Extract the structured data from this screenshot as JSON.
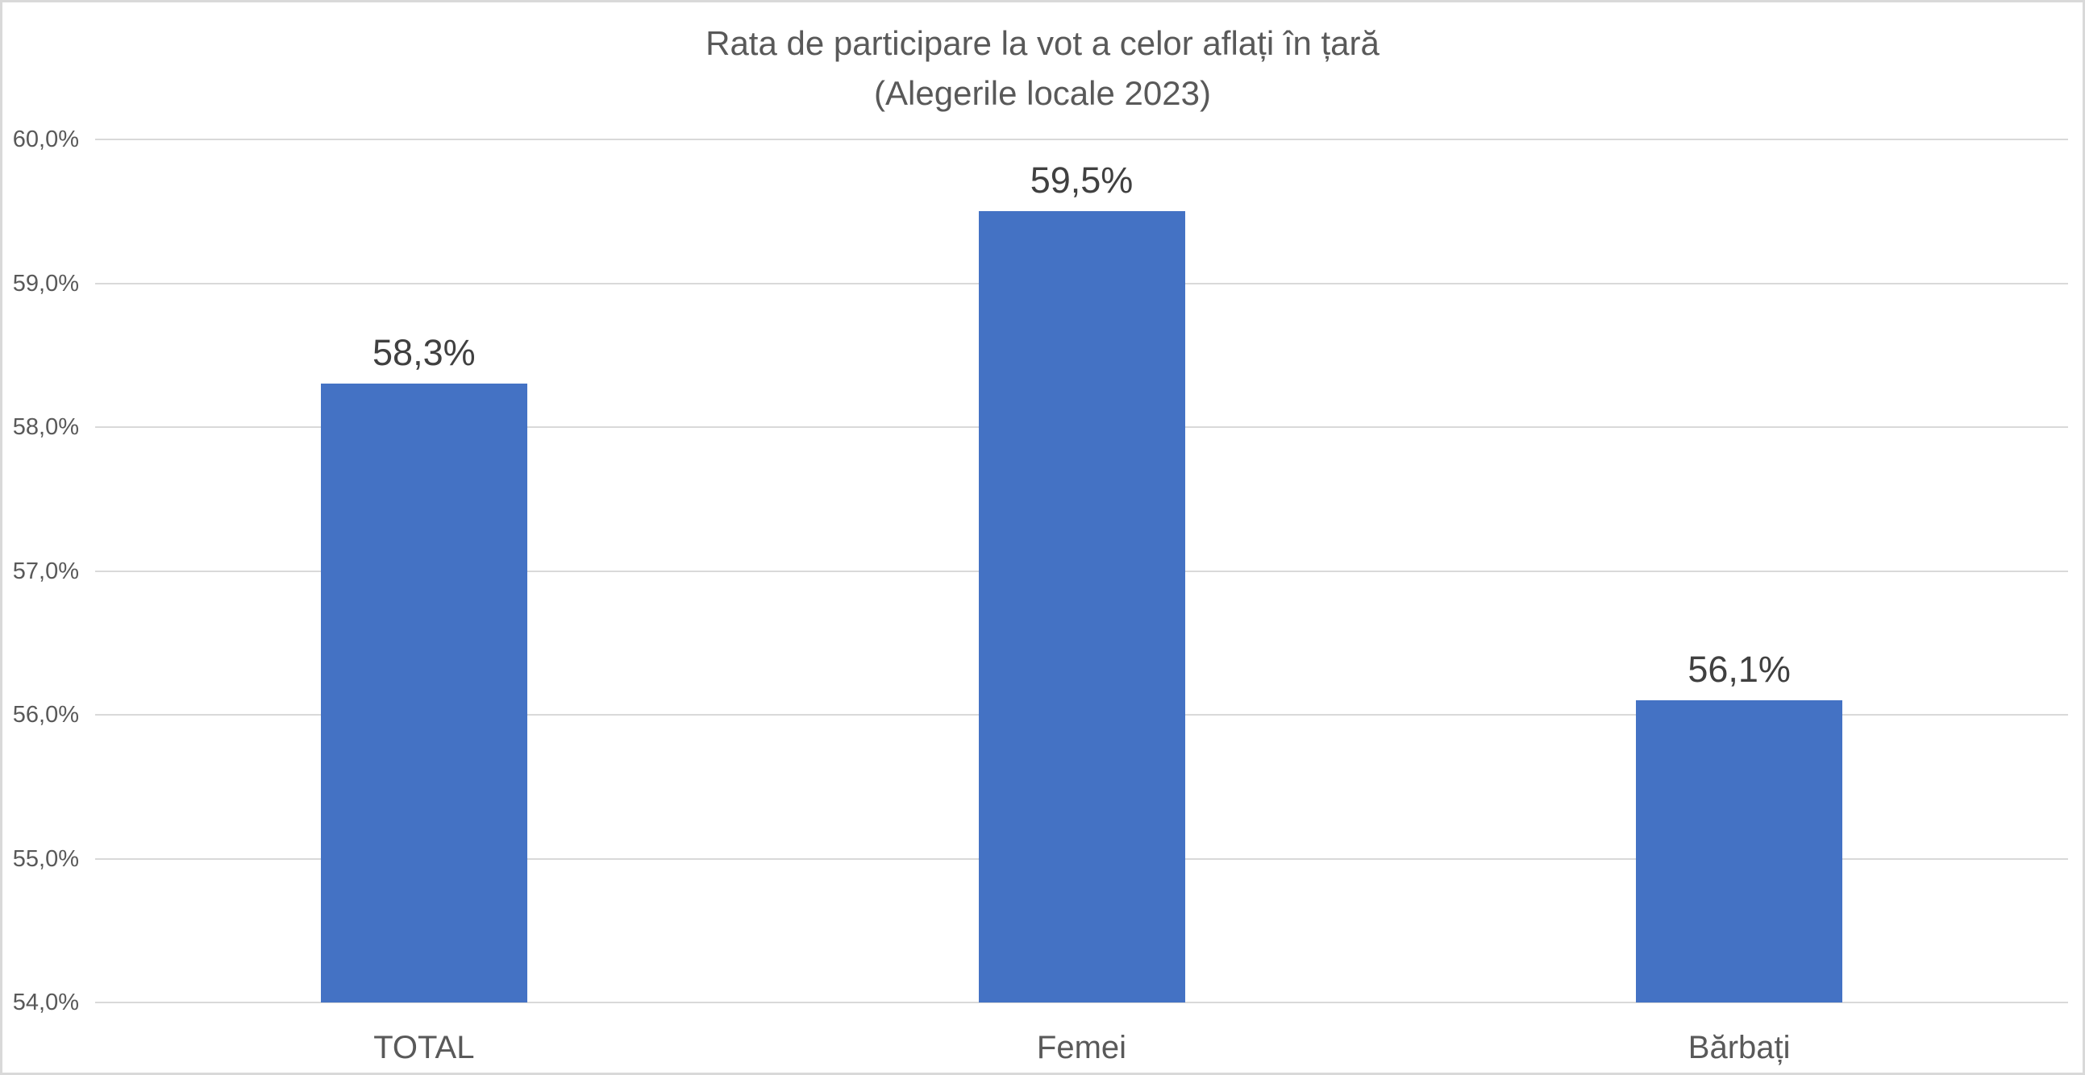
{
  "chart_data": {
    "type": "bar",
    "title": "Rata de participare la vot a celor aflați în țară",
    "subtitle": "(Alegerile locale 2023)",
    "categories": [
      "TOTAL",
      "Femei",
      "Bărbați"
    ],
    "values": [
      58.3,
      59.5,
      56.1
    ],
    "value_labels": [
      "58,3%",
      "59,5%",
      "56,1%"
    ],
    "ylim": [
      54,
      60
    ],
    "yticks": [
      60,
      59,
      58,
      57,
      56,
      55,
      54
    ],
    "ytick_labels": [
      "60,0%",
      "59,0%",
      "58,0%",
      "57,0%",
      "56,0%",
      "55,0%",
      "54,0%"
    ],
    "xlabel": "",
    "ylabel": "",
    "grid": true,
    "legend": false,
    "colors": {
      "bar": "#4472C4",
      "title_text": "#595959",
      "axis_text": "#595959",
      "value_label_text": "#404040",
      "gridline": "#D9D9D9",
      "chart_border": "#D9D9D9",
      "background": "#FFFFFF"
    }
  }
}
